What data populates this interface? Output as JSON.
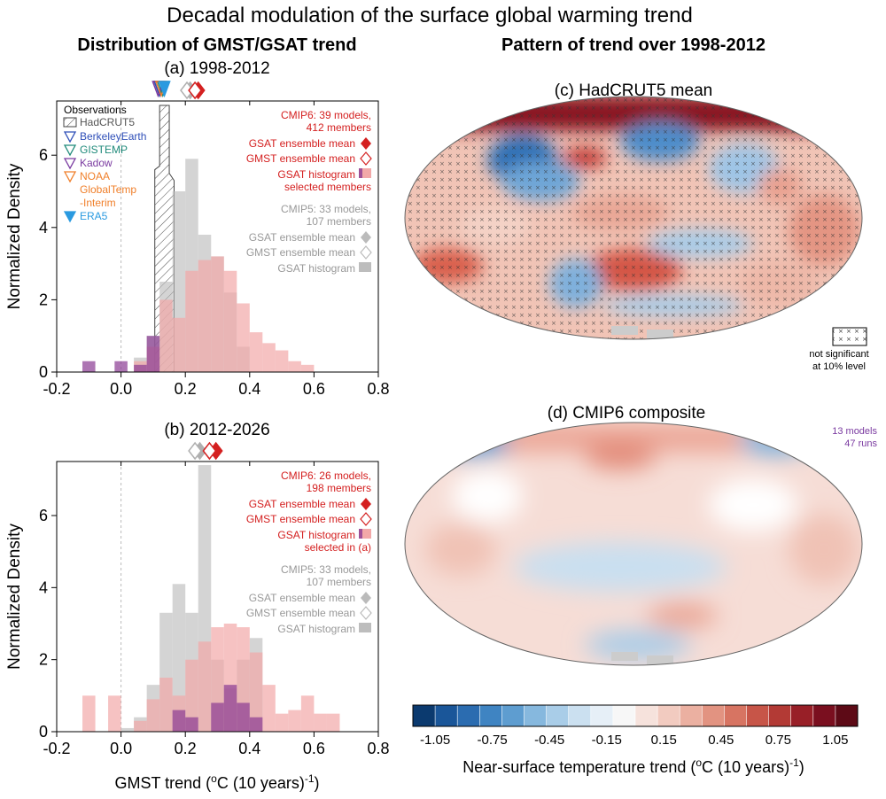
{
  "header": {
    "title": "Decadal modulation of the surface global warming trend",
    "left_heading": "Distribution of GMST/GSAT trend",
    "right_heading": "Pattern of trend over 1998-2012"
  },
  "colors": {
    "cmip6": "#d42020",
    "cmip6_hist": "#f2a8a8",
    "cmip5": "#bdbdbd",
    "selected": "#8a3a93",
    "hadcrut": "#555555",
    "berkeley": "#2f4fb8",
    "gistemp": "#1f8a7a",
    "kadow": "#7a3aa0",
    "noaa": "#f07f2a",
    "era5": "#2a9ae0"
  },
  "chart_data": [
    {
      "id": "a",
      "type": "bar",
      "title": "(a) 1998-2012",
      "xlabel": "",
      "ylabel": "Normalized Density",
      "xlim": [
        -0.2,
        0.8
      ],
      "ylim": [
        0,
        7.5
      ],
      "xticks": [
        "-0.2",
        "0.0",
        "0.2",
        "0.4",
        "0.6",
        "0.8"
      ],
      "xtick_values": [
        -0.2,
        0.0,
        0.2,
        0.4,
        0.6,
        0.8
      ],
      "yticks": [
        "0",
        "2",
        "4",
        "6"
      ],
      "ytick_values": [
        0,
        2,
        4,
        6
      ],
      "bin_width": 0.04,
      "series": [
        {
          "name": "CMIP5 GSAT histogram",
          "bin_left": [
            0.04,
            0.08,
            0.12,
            0.16,
            0.2,
            0.24,
            0.28,
            0.32,
            0.36
          ],
          "values": [
            0.4,
            1.0,
            2.5,
            5.0,
            5.9,
            3.8,
            3.2,
            2.2,
            0.7
          ]
        },
        {
          "name": "CMIP6 GSAT histogram",
          "bin_left": [
            0.04,
            0.08,
            0.12,
            0.16,
            0.2,
            0.24,
            0.28,
            0.32,
            0.36,
            0.4,
            0.44,
            0.48,
            0.52,
            0.56
          ],
          "values": [
            0.3,
            0.7,
            2.0,
            1.5,
            2.8,
            3.1,
            3.2,
            2.8,
            1.9,
            1.1,
            0.8,
            0.6,
            0.3,
            0.2
          ]
        },
        {
          "name": "selected members",
          "bin_left": [
            -0.12,
            -0.02,
            0.04,
            0.08
          ],
          "values": [
            0.3,
            0.3,
            0.2,
            1.0
          ]
        }
      ],
      "observations": [
        {
          "name": "HadCRUT5",
          "x": 0.12
        },
        {
          "name": "BerkeleyEarth",
          "x": 0.12
        },
        {
          "name": "GISTEMP",
          "x": 0.13
        },
        {
          "name": "Kadow",
          "x": 0.115
        },
        {
          "name": "NOAA GlobalTemp -Interim",
          "x": 0.125
        },
        {
          "name": "ERA5",
          "x": 0.135
        }
      ],
      "means": [
        {
          "name": "CMIP5 GSAT ensemble mean",
          "x": 0.215
        },
        {
          "name": "CMIP5 GMST ensemble mean",
          "x": 0.205
        },
        {
          "name": "CMIP6 GSAT ensemble mean",
          "x": 0.24
        },
        {
          "name": "CMIP6 GMST ensemble mean",
          "x": 0.23
        }
      ],
      "obs_legend": {
        "title": "Observations",
        "entries": [
          "HadCRUT5",
          "BerkeleyEarth",
          "GISTEMP",
          "Kadow",
          "NOAA",
          "GlobalTemp",
          "-Interim",
          "ERA5"
        ]
      },
      "cmip_legend": [
        "CMIP6: 39 models,",
        "412 members",
        "GSAT ensemble mean",
        "GMST ensemble mean",
        "GSAT histogram",
        "selected members",
        "CMIP5: 33 models,",
        "107 members",
        "GSAT ensemble mean",
        "GMST ensemble mean",
        "GSAT histogram"
      ]
    },
    {
      "id": "b",
      "type": "bar",
      "title": "(b) 2012-2026",
      "xlabel": "GMST trend (°C (10 years)⁻¹)",
      "xlabel_main": "GMST trend (",
      "xlabel_unit": "C (10 years)",
      "xlabel_sup1": "o",
      "xlabel_sup2": "-1",
      "ylabel": "Normalized Density",
      "xlim": [
        -0.2,
        0.8
      ],
      "ylim": [
        0,
        7.5
      ],
      "xticks": [
        "-0.2",
        "0.0",
        "0.2",
        "0.4",
        "0.6",
        "0.8"
      ],
      "xtick_values": [
        -0.2,
        0.0,
        0.2,
        0.4,
        0.6,
        0.8
      ],
      "yticks": [
        "0",
        "2",
        "4",
        "6"
      ],
      "ytick_values": [
        0,
        2,
        4,
        6
      ],
      "bin_width": 0.04,
      "series": [
        {
          "name": "CMIP5 GSAT histogram",
          "bin_left": [
            0.0,
            0.04,
            0.08,
            0.12,
            0.16,
            0.2,
            0.24,
            0.28,
            0.32,
            0.36,
            0.4
          ],
          "values": [
            0.1,
            0.4,
            1.3,
            3.3,
            4.1,
            3.3,
            7.4,
            2.0,
            1.2,
            2.0,
            2.6
          ]
        },
        {
          "name": "CMIP6 GSAT histogram",
          "bin_left": [
            -0.12,
            -0.04,
            0.04,
            0.08,
            0.12,
            0.16,
            0.2,
            0.24,
            0.28,
            0.32,
            0.36,
            0.4,
            0.44,
            0.48,
            0.52,
            0.56,
            0.6,
            0.64
          ],
          "values": [
            1.0,
            1.0,
            0.3,
            0.9,
            1.5,
            1.0,
            2.0,
            2.5,
            2.9,
            3.0,
            2.9,
            2.2,
            1.3,
            0.5,
            0.6,
            1.0,
            0.5,
            0.5
          ]
        },
        {
          "name": "selected in (a)",
          "bin_left": [
            0.16,
            0.2,
            0.28,
            0.32,
            0.36,
            0.4
          ],
          "values": [
            0.6,
            0.4,
            0.8,
            1.3,
            0.8,
            0.4
          ]
        }
      ],
      "means": [
        {
          "name": "CMIP5 GSAT ensemble mean",
          "x": 0.245
        },
        {
          "name": "CMIP5 GMST ensemble mean",
          "x": 0.23
        },
        {
          "name": "CMIP6 GSAT ensemble mean",
          "x": 0.295
        },
        {
          "name": "CMIP6 GMST ensemble mean",
          "x": 0.275
        }
      ],
      "cmip_legend": [
        "CMIP6: 26 models,",
        "198 members",
        "GSAT ensemble mean",
        "GMST ensemble mean",
        "GSAT histogram",
        "selected in (a)",
        "CMIP5: 33 models,",
        "107 members",
        "GSAT ensemble mean",
        "GMST ensemble mean",
        "GSAT histogram"
      ]
    }
  ],
  "maps": {
    "c": {
      "title": "(c) HadCRUT5 mean",
      "hatch_label_1": "not significant",
      "hatch_label_2": "at 10% level"
    },
    "d": {
      "title": "(d) CMIP6 composite",
      "note_1": "13 models",
      "note_2": "47 runs"
    }
  },
  "colorbar": {
    "labels": [
      "-1.05",
      "-0.75",
      "-0.45",
      "-0.15",
      "0.15",
      "0.45",
      "0.75",
      "1.05"
    ],
    "title_main": "Near-surface temperature trend (",
    "title_unit": "C (10 years)",
    "title_sup1": "o",
    "title_sup2": "-1",
    "colors": [
      "#0b3a6f",
      "#1a5699",
      "#2b6cb0",
      "#3f84c2",
      "#5e9dd0",
      "#86b8de",
      "#a9cde8",
      "#cbe0f0",
      "#e6eff7",
      "#f7f7f7",
      "#f6e2dc",
      "#f2cbc0",
      "#ebb0a1",
      "#e29381",
      "#d77462",
      "#c75548",
      "#b33a35",
      "#981f27",
      "#7a0f1f",
      "#5d0a16"
    ]
  }
}
